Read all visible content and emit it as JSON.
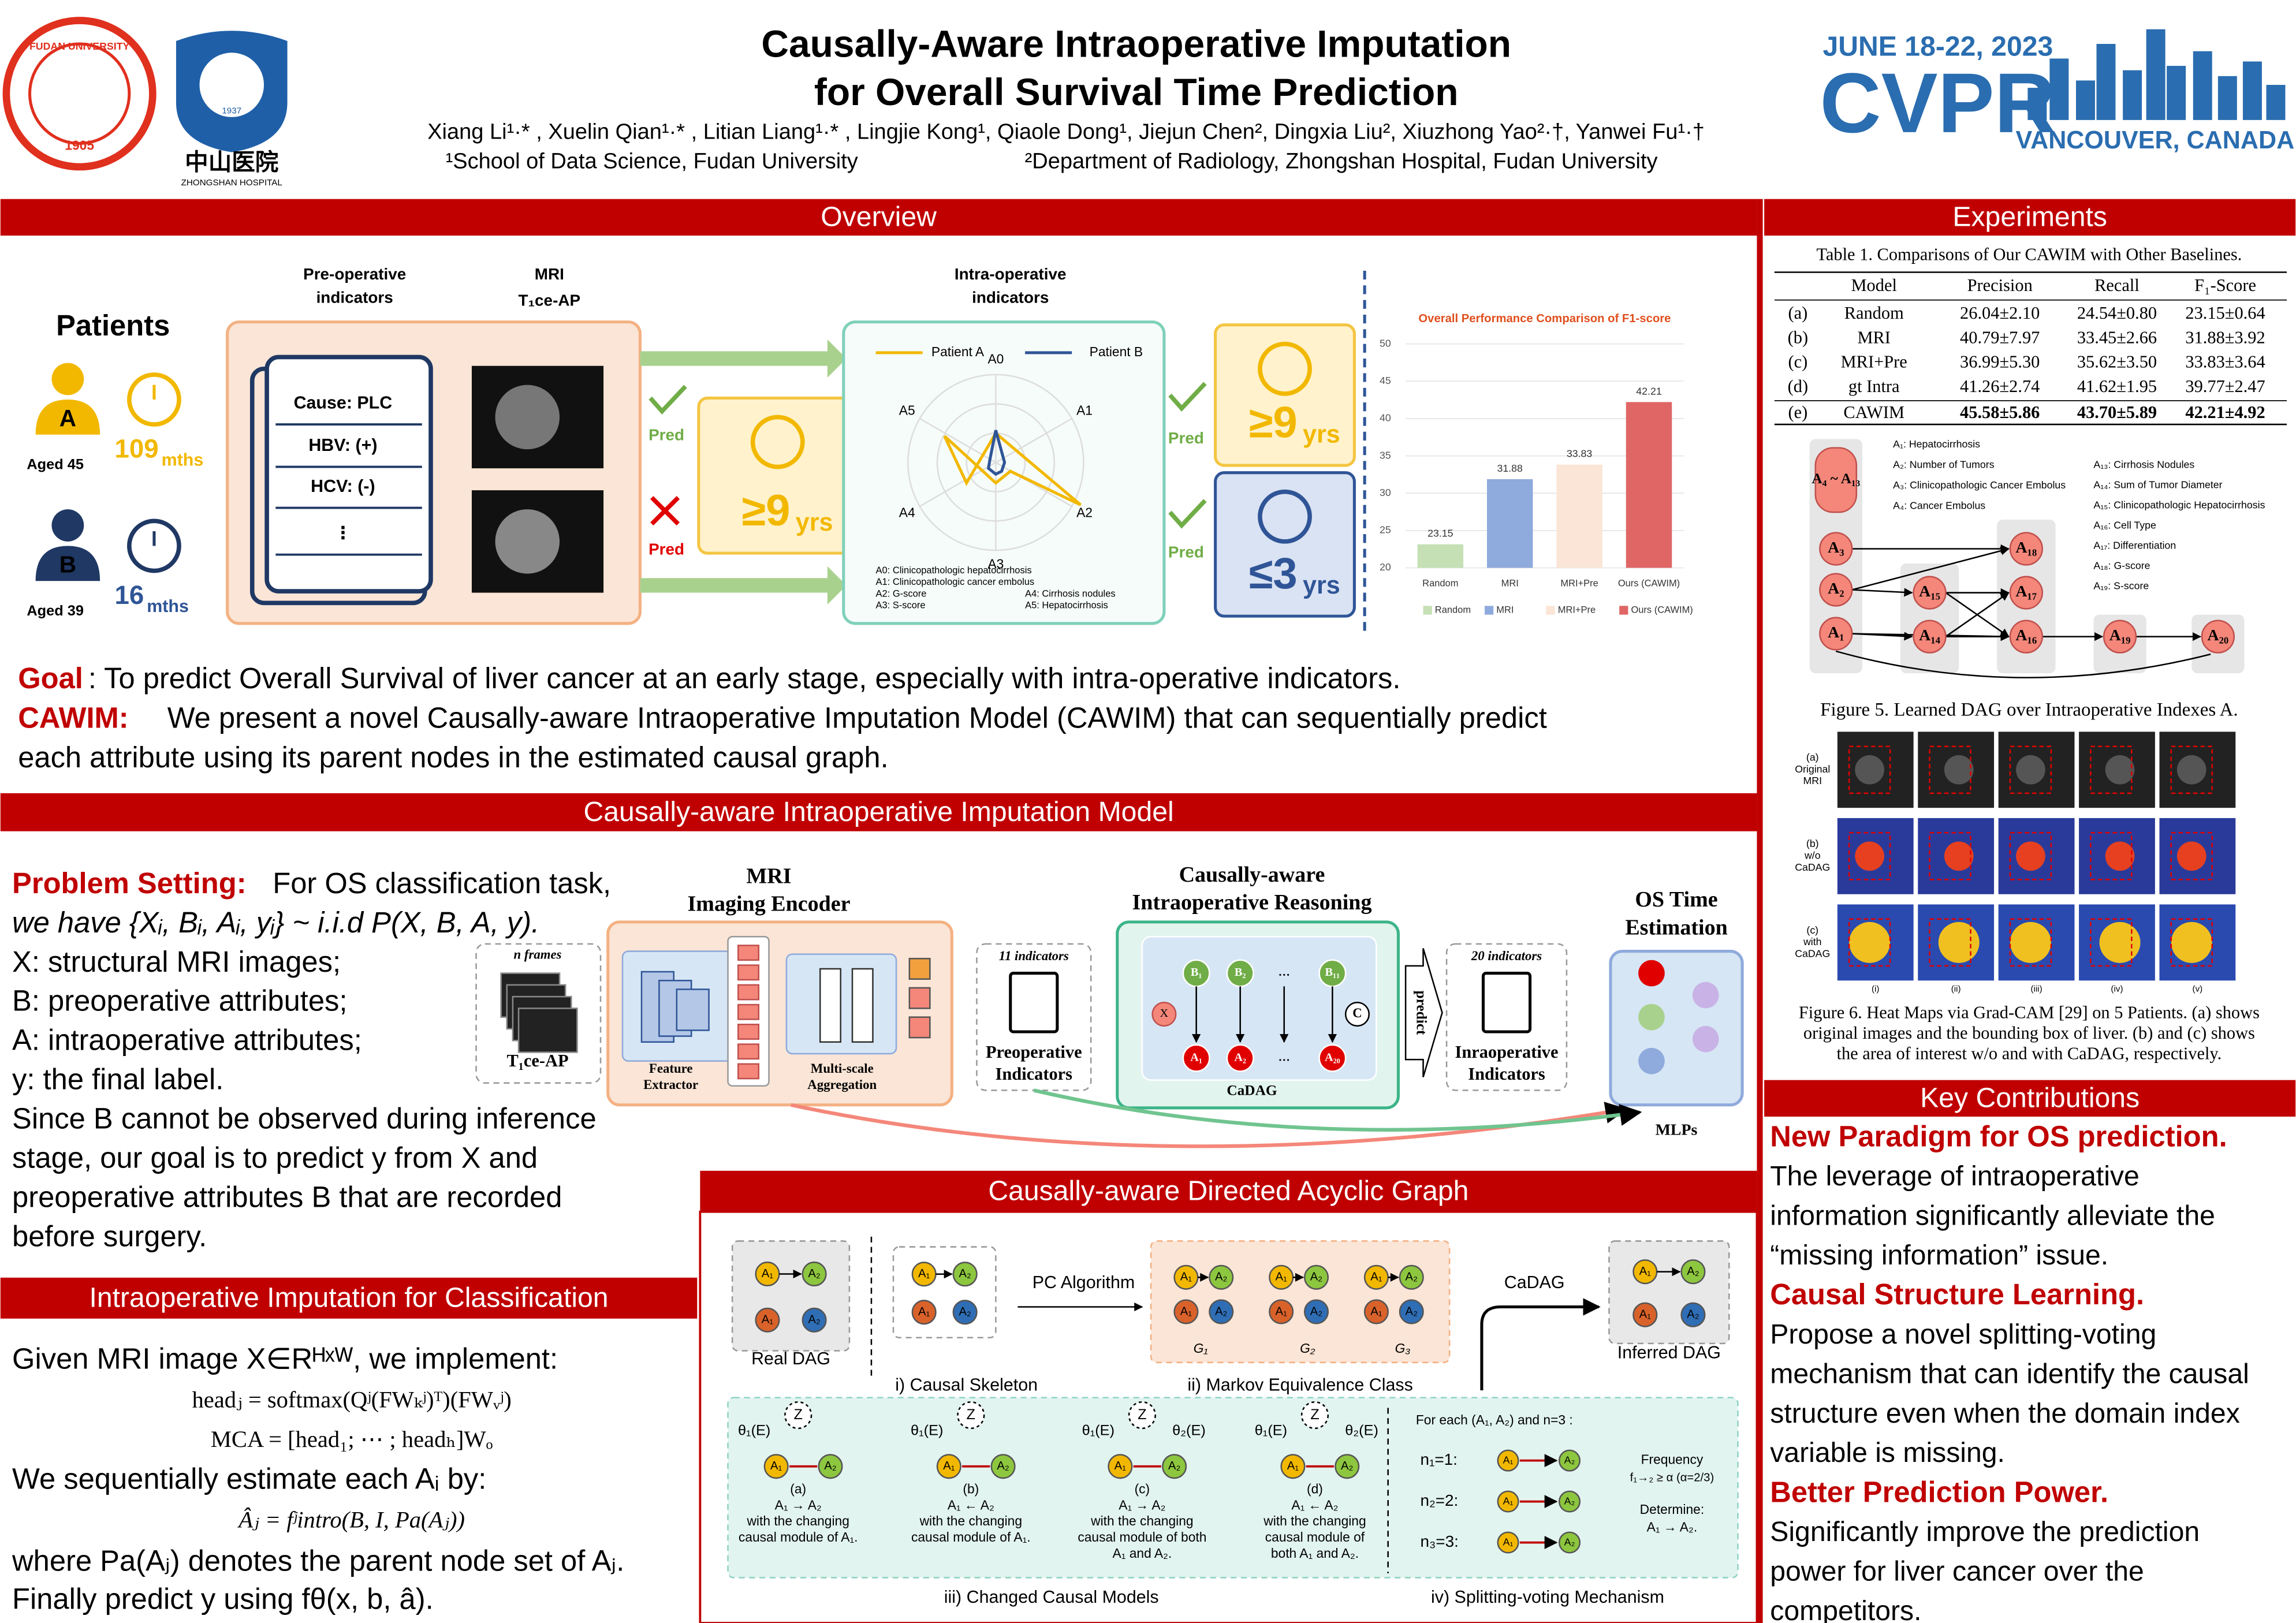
{
  "header": {
    "title_lines": [
      "Causally-Aware Intraoperative Imputation",
      "for Overall Survival Time Prediction"
    ],
    "authors": "Xiang Li¹·* , Xuelin Qian¹·* , Litian Liang¹·* , Lingjie Kong¹, Qiaole Dong¹, Jiejun Chen², Dingxia Liu², Xiuzhong Yao²·†, Yanwei Fu¹·†",
    "affiliation_1": "¹School of Data Science, Fudan University",
    "affiliation_2": "²Department of Radiology, Zhongshan Hospital, Fudan University",
    "logo_fudan": "FUDAN UNIVERSITY",
    "logo_fudan_year": "1905",
    "logo_hospital_year": "1937",
    "logo_hospital": "中山医院",
    "logo_hospital_en": "ZHONGSHAN HOSPITAL",
    "conf_dates": "JUNE 18-22, 2023",
    "conf_name": "CVPR",
    "conf_place": "VANCOUVER, CANADA"
  },
  "overview": {
    "heading": "Overview",
    "patients": "Patients",
    "patient_a": {
      "id": "A",
      "age": "Aged 45",
      "time": "109",
      "unit": "mths"
    },
    "patient_b": {
      "id": "B",
      "age": "Aged 39",
      "time": "16",
      "unit": "mths"
    },
    "preop_title": [
      "Pre-operative",
      "indicators"
    ],
    "mri_title": [
      "MRI",
      "T₁ce-AP"
    ],
    "intraop_title": [
      "Intra-operative",
      "indicators"
    ],
    "indicators": [
      "Cause: PLC",
      "HBV: (+)",
      "HCV: (-)",
      "⋮"
    ],
    "pred": "Pred",
    "long_prefix": "≥9",
    "short_prefix": "≤3",
    "unit_years": "yrs",
    "radar_legend": [
      "Patient A",
      "Patient B"
    ],
    "radar_axes": [
      "A0",
      "A1",
      "A2",
      "A3",
      "A4",
      "A5"
    ],
    "radar_notes": [
      "A0: Clinicopathologic hepatocirrhosis",
      "A1: Clinicopathologic cancer embolus",
      "A2: G-score",
      "A3: S-score",
      "A4: Cirrhosis nodules",
      "A5: Hepatocirrhosis"
    ],
    "goal_label": "Goal",
    "goal_text": ": To predict Overall Survival of liver cancer at an early stage, especially with intra-operative indicators.",
    "cawim_label": "CAWIM:",
    "cawim_lines": [
      "We present a novel Causally-aware Intraoperative Imputation Model (CAWIM) that can sequentially predict",
      "each attribute using its parent nodes in the estimated causal graph."
    ]
  },
  "chart_data": {
    "type": "bar",
    "title": "Overall Performance Comparison of F1-score",
    "categories": [
      "Random",
      "MRI",
      "MRI+Pre",
      "Ours (CAWIM)"
    ],
    "values": [
      23.15,
      31.88,
      33.83,
      42.21
    ],
    "colors": [
      "#c5e0b4",
      "#8faadc",
      "#fbe5d6",
      "#e06666"
    ],
    "ylim": [
      20,
      50
    ],
    "yticks": [
      20,
      25,
      30,
      35,
      40,
      45,
      50
    ],
    "grid": true,
    "legend": "bottom"
  },
  "model": {
    "heading": "Causally-aware Intraoperative Imputation Model",
    "problem_label": "Problem Setting:",
    "problem_lines": [
      " For OS classification task,",
      "we have {Xᵢ, Bᵢ, Aᵢ, yᵢ} ~ i.i.d P(X, B, A, y).",
      "X: structural MRI images;",
      "B: preoperative attributes;",
      "A: intraoperative attributes;",
      "y: the final label.",
      "Since B cannot be observed during inference",
      "stage, our goal is to predict y from X and",
      "preoperative attributes B that are recorded",
      "before surgery."
    ],
    "encoder_title": [
      "MRI",
      "Imaging Encoder"
    ],
    "n_frames": "n frames",
    "t1ce": "T₁ce-AP",
    "feature_extractor": [
      "Feature",
      "Extractor"
    ],
    "aggregation": [
      "Multi-scale",
      "Aggregation"
    ],
    "reasoning_title": [
      "Causally-aware",
      "Intraoperative Reasoning"
    ],
    "cadag": "CaDAG",
    "preop_count": "11 indicators",
    "preop_label": [
      "Preoperative",
      "Indicators"
    ],
    "predict": "predict",
    "intraop_count": "20 indicators",
    "intraop_label": [
      "Inraoperative",
      "Indicators"
    ],
    "os_title": [
      "OS Time",
      "Estimation"
    ],
    "mlps": "MLPs",
    "cadag_nodes_b": [
      "B₁",
      "B₂",
      "…",
      "B₁₁"
    ],
    "cadag_nodes_a": [
      "A₁",
      "A₂",
      "…",
      "A₂₀"
    ],
    "cadag_x": "X",
    "cadag_c": "C"
  },
  "imputation": {
    "heading": "Intraoperative Imputation for Classification",
    "lines": [
      "Given MRI image X∈Rᴴˣᵂ, we implement:",
      "headⱼ = softmax(Qʲ(FWₖʲ)ᵀ)(FWᵥʲ)",
      "MCA = [head₁; ⋯ ; headₕ]Wₒ",
      "We sequentially estimate each Aᵢ by:",
      "Âⱼ = fʲintro(B, I, Pa(Aⱼ))",
      "where Pa(Aⱼ) denotes the parent node set of Aⱼ.",
      "Finally predict y using fθ(x, b, â)."
    ]
  },
  "dag": {
    "heading": "Causally-aware Directed Acyclic Graph",
    "node_labels": [
      "A₁",
      "A₂"
    ],
    "real_dag": "Real DAG",
    "pc_algorithm": "PC Algorithm",
    "cadag": "CaDAG",
    "inferred_dag": "Inferred DAG",
    "g_labels": [
      "G₁",
      "G₂",
      "G₃"
    ],
    "caption_i": "i) Causal Skeleton",
    "caption_ii": "ii) Markov Equivalence Class",
    "caption_iii": "iii) Changed Causal Models",
    "caption_iv": "iv) Splitting-voting Mechanism",
    "z": "Z",
    "theta1": "θ₁(E)",
    "theta2": "θ₂(E)",
    "models": [
      [
        "(a)",
        "A₁ → A₂",
        "with the changing",
        "causal module of A₁."
      ],
      [
        "(b)",
        "A₁ ← A₂",
        "with the changing",
        "causal module of A₁."
      ],
      [
        "(c)",
        "A₁ → A₂",
        "with the changing",
        "causal module of both",
        "A₁ and A₂."
      ],
      [
        "(d)",
        "A₁ ← A₂",
        "with the changing",
        "causal module of",
        "both A₁ and A₂."
      ]
    ],
    "voting_title": "For each (A₁, A₂) and n=3 :",
    "voting_rows": [
      "n₁=1:",
      "n₂=2:",
      "n₃=3:"
    ],
    "frequency": [
      "Frequency",
      "f₁→₂ ≥ α (α=2/3)"
    ],
    "determine": [
      "Determine:",
      "A₁ → A₂."
    ]
  },
  "experiments": {
    "heading": "Experiments",
    "table_caption": "Table 1. Comparisons of Our CAWIM with Other Baselines.",
    "table_header": [
      "Model",
      "Precision",
      "Recall",
      "F₁-Score"
    ],
    "table_rows": [
      [
        "(a)",
        "Random",
        "26.04±2.10",
        "24.54±0.80",
        "23.15±0.64"
      ],
      [
        "(b)",
        "MRI",
        "40.79±7.97",
        "33.45±2.66",
        "31.88±3.92"
      ],
      [
        "(c)",
        "MRI+Pre",
        "36.99±5.30",
        "35.62±3.50",
        "33.83±3.64"
      ],
      [
        "(d)",
        "gt Intra",
        "41.26±2.74",
        "41.62±1.95",
        "39.77±2.47"
      ],
      [
        "(e)",
        "CAWIM",
        "45.58±5.86",
        "43.70±5.89",
        "42.21±4.92"
      ]
    ],
    "fig5_nodes": [
      "A₄ ~ A₁₃",
      "A₃",
      "A₂",
      "A₁",
      "A₁₅",
      "A₁₄",
      "A₁₈",
      "A₁₇",
      "A₁₆",
      "A₁₉",
      "A₂₀"
    ],
    "fig5_legend_left": [
      "A₁: Hepatocirrhosis",
      "A₂: Number of Tumors",
      "A₃: Clinicopathologic Cancer Embolus",
      "A₄: Cancer Embolus"
    ],
    "fig5_legend_right": [
      "A₁₃: Cirrhosis Nodules",
      "A₁₄: Sum of Tumor Diameter",
      "A₁₅: Clinicopathologic Hepatocirrhosis",
      "A₁₆: Cell Type",
      "A₁₇: Differentiation",
      "A₁₈: G-score",
      "A₁₉: S-score"
    ],
    "fig5_caption": "Figure 5. Learned DAG over Intraoperative Indexes A.",
    "fig6_rows": [
      [
        "(a)",
        "Original",
        "MRI"
      ],
      [
        "(b)",
        "w/o",
        "CaDAG"
      ],
      [
        "(c)",
        "with",
        "CaDAG"
      ]
    ],
    "fig6_cols": [
      "(i)",
      "(ii)",
      "(iii)",
      "(iv)",
      "(v)"
    ],
    "fig6_caption": [
      "Figure 6. Heat Maps via Grad-CAM [29] on 5 Patients. (a) shows",
      "original images and the bounding box of liver. (b) and (c) shows",
      "the area of interest w/o and with CaDAG, respectively."
    ]
  },
  "contributions": {
    "heading": "Key Contributions",
    "items": [
      {
        "title": "New Paradigm for OS prediction.",
        "lines": [
          "The leverage of intraoperative",
          "information significantly alleviate the",
          "“missing information” issue."
        ]
      },
      {
        "title": "Causal Structure Learning.",
        "lines": [
          "Propose a novel splitting-voting",
          "mechanism that can identify the causal",
          "structure even when the domain index",
          "variable is missing."
        ]
      },
      {
        "title": "Better Prediction Power.",
        "lines": [
          "Significantly improve the prediction",
          "power for liver cancer over the",
          "competitors."
        ]
      }
    ]
  }
}
